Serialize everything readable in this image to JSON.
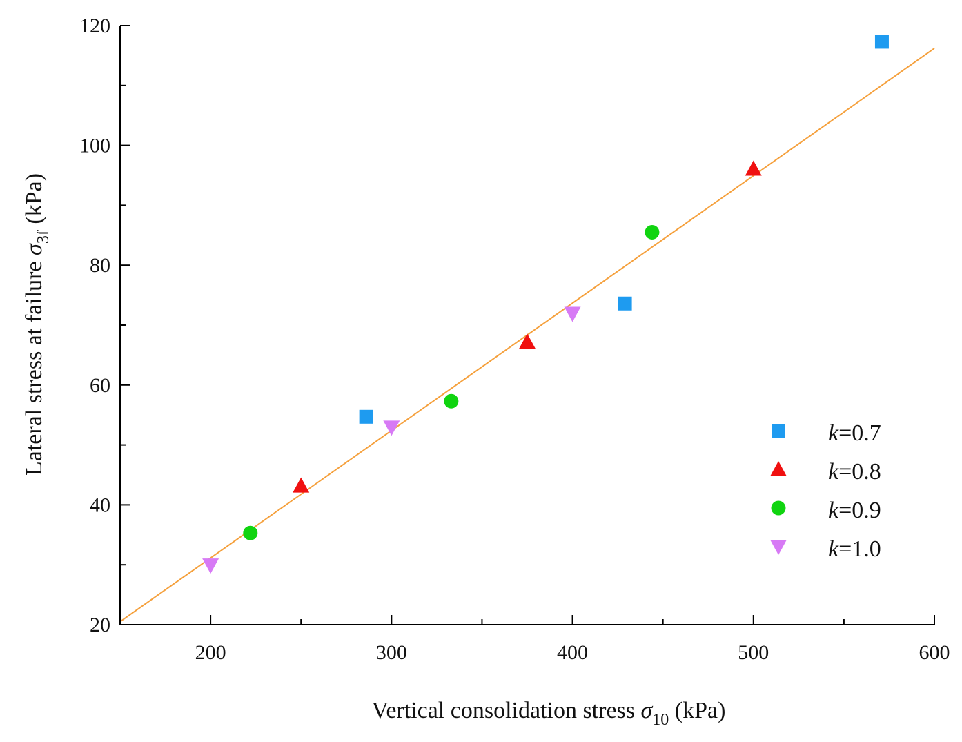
{
  "chart_data": {
    "type": "scatter",
    "title": "",
    "xlabel": {
      "main": "Vertical consolidation stress ",
      "symbol": "σ",
      "subscript": "10",
      "unit": "  (kPa)"
    },
    "ylabel": {
      "main": "Lateral stress at failure ",
      "symbol": "σ",
      "subscript": "3f",
      "unit": "  (kPa)"
    },
    "xlim": [
      150,
      600
    ],
    "ylim": [
      20,
      120
    ],
    "xticks": [
      {
        "value": 200,
        "label": "200"
      },
      {
        "value": 300,
        "label": "300"
      },
      {
        "value": 400,
        "label": "400"
      },
      {
        "value": 500,
        "label": "500"
      },
      {
        "value": 600,
        "label": "600"
      }
    ],
    "yticks": [
      {
        "value": 20,
        "label": "20"
      },
      {
        "value": 40,
        "label": "40"
      },
      {
        "value": 60,
        "label": "60"
      },
      {
        "value": 80,
        "label": "80"
      },
      {
        "value": 100,
        "label": "100"
      },
      {
        "value": 120,
        "label": "120"
      }
    ],
    "grid": false,
    "legend_position": "bottom-right",
    "series": [
      {
        "name": "k=0.7",
        "name_italic": "k",
        "name_rest": "=0.7",
        "marker": "square",
        "color": "#1E9BF0",
        "points": [
          [
            286,
            54.7
          ],
          [
            429,
            73.6
          ],
          [
            571,
            117.3
          ]
        ]
      },
      {
        "name": "k=0.8",
        "name_italic": "k",
        "name_rest": "=0.8",
        "marker": "triangle-up",
        "color": "#F01010",
        "points": [
          [
            250,
            43.2
          ],
          [
            375,
            67.2
          ],
          [
            500,
            96.1
          ]
        ]
      },
      {
        "name": "k=0.9",
        "name_italic": "k",
        "name_rest": "=0.9",
        "marker": "circle",
        "color": "#10D410",
        "points": [
          [
            222,
            35.3
          ],
          [
            333,
            57.3
          ],
          [
            444,
            85.5
          ]
        ]
      },
      {
        "name": "k=1.0",
        "name_italic": "k",
        "name_rest": "=1.0",
        "marker": "triangle-down",
        "color": "#D77AF5",
        "points": [
          [
            200,
            29.9
          ],
          [
            300,
            52.9
          ],
          [
            400,
            71.9
          ]
        ]
      }
    ],
    "fit_line": {
      "color": "#F5A03C",
      "x": [
        150,
        600
      ],
      "y": [
        20.5,
        116.2
      ]
    }
  }
}
